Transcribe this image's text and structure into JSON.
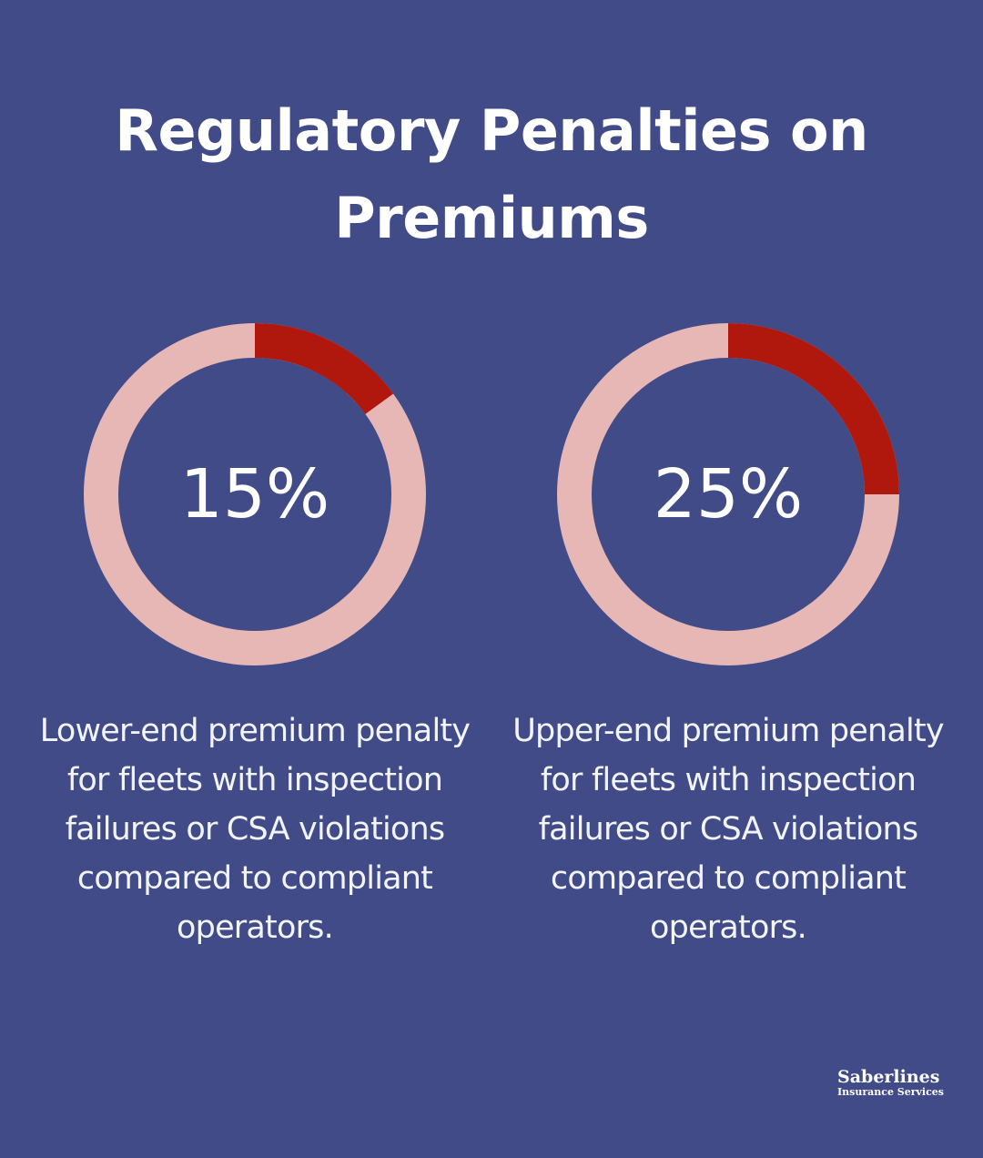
{
  "title": {
    "line1": "Regulatory Penalties on",
    "line2": "Premiums"
  },
  "colors": {
    "background": "#404b87",
    "track": "#e6b7b5",
    "fill": "#b0180e",
    "text": "#ffffff"
  },
  "chart_data": [
    {
      "type": "pie",
      "variant": "donut",
      "value": 15,
      "max": 100,
      "label": "15%",
      "description": "Lower-end premium penalty for fleets with inspection failures or CSA violations compared to compliant operators."
    },
    {
      "type": "pie",
      "variant": "donut",
      "value": 25,
      "max": 100,
      "label": "25%",
      "description": "Upper-end premium penalty for fleets with inspection failures or CSA violations compared to compliant operators."
    }
  ],
  "logo": {
    "brand": "Saberlines",
    "tagline": "Insurance Services"
  }
}
